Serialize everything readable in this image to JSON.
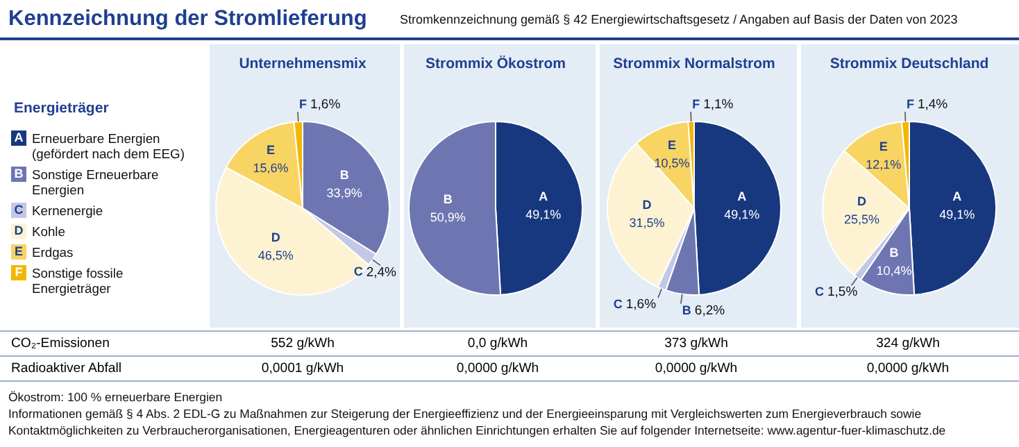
{
  "chart_data": [
    {
      "type": "other",
      "title": "Kennzeichnung der Stromlieferung",
      "subtitle": "Stromkennzeichnung gemäß § 42 Energiewirtschaftsgesetz / Angaben auf Basis der Daten von 2023",
      "legend_title": "Energieträger",
      "annotations": [
        "Erneuerbare Energien (gefördert nach dem EEG)",
        "Sonstige Erneuerbare Energien",
        "Kernenergie",
        "Kohle",
        "Erdgas",
        "Sonstige fossile Energieträger",
        "CO₂-Emissionen",
        "Radioaktiver Abfall",
        "Ökostrom: 100 % erneuerbare Energien",
        "Informationen gemäß § 4 Abs. 2 EDL-G zu Maßnahmen zur Steigerung der Energieeffizienz und der Energieeinsparung mit Vergleichswerten zum Energieverbrauch sowie Kontaktmöglichkeiten zu Verbraucherorganisationen, Energieagenturen oder ähnlichen Einrichtungen erhalten Sie auf folgender Internetseite: www.agentur-fuer-klimaschutz.de"
      ]
    },
    {
      "type": "pie",
      "title": "Unternehmensmix",
      "categories": [
        "A",
        "B",
        "C",
        "D",
        "E",
        "F"
      ],
      "values": [
        0,
        33.9,
        2.4,
        46.5,
        15.6,
        1.6
      ],
      "value_labels": [
        null,
        "33,9%",
        "2,4%",
        "46,5%",
        "15,6%",
        "1,6%"
      ],
      "colors": [
        "#17387f",
        "#6e76b2",
        "#c3c8e6",
        "#fdf3d2",
        "#f8d463",
        "#f2b705"
      ],
      "annotations": [
        "552 g/kWh",
        "0,0001 g/kWh"
      ]
    },
    {
      "type": "pie",
      "title": "Strommix Ökostrom",
      "categories": [
        "A",
        "B"
      ],
      "values": [
        49.1,
        50.9
      ],
      "value_labels": [
        "49,1%",
        "50,9%"
      ],
      "colors": [
        "#17387f",
        "#6e76b2"
      ],
      "annotations": [
        "0,0 g/kWh",
        "0,0000 g/kWh"
      ]
    },
    {
      "type": "pie",
      "title": "Strommix Normalstrom",
      "categories": [
        "A",
        "B",
        "C",
        "D",
        "E",
        "F"
      ],
      "values": [
        49.1,
        6.2,
        1.6,
        31.5,
        10.5,
        1.1
      ],
      "value_labels": [
        "49,1%",
        "6,2%",
        "1,6%",
        "31,5%",
        "10,5%",
        "1,1%"
      ],
      "colors": [
        "#17387f",
        "#6e76b2",
        "#c3c8e6",
        "#fdf3d2",
        "#f8d463",
        "#f2b705"
      ],
      "annotations": [
        "373 g/kWh",
        "0,0000 g/kWh"
      ]
    },
    {
      "type": "pie",
      "title": "Strommix Deutschland",
      "categories": [
        "A",
        "B",
        "C",
        "D",
        "E",
        "F"
      ],
      "values": [
        49.1,
        10.4,
        1.5,
        25.5,
        12.1,
        1.4
      ],
      "value_labels": [
        "49,1%",
        "10,4%",
        "1,5%",
        "25,5%",
        "12,1%",
        "1,4%"
      ],
      "colors": [
        "#17387f",
        "#6e76b2",
        "#c3c8e6",
        "#fdf3d2",
        "#f8d463",
        "#f2b705"
      ],
      "annotations": [
        "324 g/kWh",
        "0,0000 g/kWh"
      ]
    }
  ]
}
